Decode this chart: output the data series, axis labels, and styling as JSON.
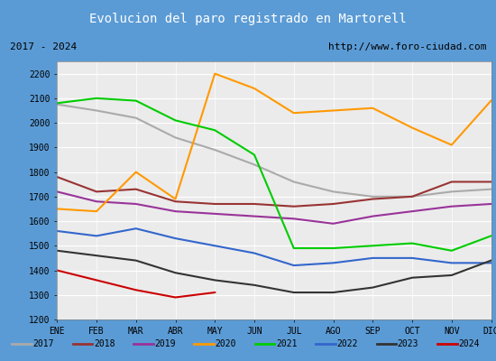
{
  "title": "Evolucion del paro registrado en Martorell",
  "subtitle_left": "2017 - 2024",
  "subtitle_right": "http://www.foro-ciudad.com",
  "title_bg_color": "#5B9BD5",
  "title_text_color": "white",
  "months": [
    "ENE",
    "FEB",
    "MAR",
    "ABR",
    "MAY",
    "JUN",
    "JUL",
    "AGO",
    "SEP",
    "OCT",
    "NOV",
    "DIC"
  ],
  "ylim": [
    1200,
    2250
  ],
  "yticks": [
    1200,
    1300,
    1400,
    1500,
    1600,
    1700,
    1800,
    1900,
    2000,
    2100,
    2200
  ],
  "series": {
    "2017": {
      "color": "#AAAAAA",
      "data": [
        2075,
        2050,
        2020,
        1940,
        1890,
        1830,
        1760,
        1720,
        1700,
        1700,
        1720,
        1730
      ]
    },
    "2018": {
      "color": "#993333",
      "data": [
        1780,
        1720,
        1730,
        1680,
        1670,
        1670,
        1660,
        1670,
        1690,
        1700,
        1760,
        1760
      ]
    },
    "2019": {
      "color": "#993399",
      "data": [
        1720,
        1680,
        1670,
        1640,
        1630,
        1620,
        1610,
        1590,
        1620,
        1640,
        1660,
        1670
      ]
    },
    "2020": {
      "color": "#FF9900",
      "data": [
        1650,
        1640,
        1800,
        1690,
        2200,
        2140,
        2040,
        2050,
        2060,
        1980,
        1910,
        2090
      ]
    },
    "2021": {
      "color": "#00CC00",
      "data": [
        2080,
        2100,
        2090,
        2010,
        1970,
        1870,
        1490,
        1490,
        1500,
        1510,
        1480,
        1540
      ]
    },
    "2022": {
      "color": "#3366CC",
      "data": [
        1560,
        1540,
        1570,
        1530,
        1500,
        1470,
        1420,
        1430,
        1450,
        1450,
        1430,
        1430
      ]
    },
    "2023": {
      "color": "#333333",
      "data": [
        1480,
        1460,
        1440,
        1390,
        1360,
        1340,
        1310,
        1310,
        1330,
        1370,
        1380,
        1440
      ]
    },
    "2024": {
      "color": "#CC0000",
      "data": [
        1400,
        1360,
        1320,
        1290,
        1310,
        null,
        null,
        null,
        null,
        null,
        null,
        null
      ]
    }
  }
}
